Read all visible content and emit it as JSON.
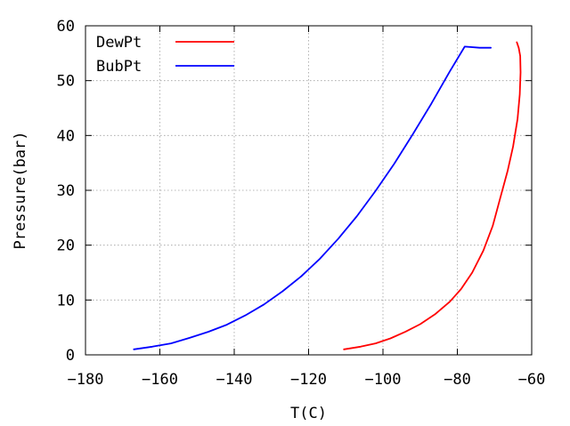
{
  "chart_data": {
    "type": "line",
    "xlabel": "T(C)",
    "ylabel": "Pressure(bar)",
    "xlim": [
      -180,
      -60
    ],
    "ylim": [
      0,
      60
    ],
    "xticks": [
      -180,
      -160,
      -140,
      -120,
      -100,
      -80,
      -60
    ],
    "yticks": [
      0,
      10,
      20,
      30,
      40,
      50,
      60
    ],
    "xtick_labels": [
      "−180",
      "−160",
      "−140",
      "−120",
      "−100",
      "−80",
      "−60"
    ],
    "ytick_labels": [
      "0",
      "10",
      "20",
      "30",
      "40",
      "50",
      "60"
    ],
    "grid": true,
    "legend_position": "top-left",
    "series": [
      {
        "name": "DewPt",
        "color": "#ff0000",
        "x": [
          -110.5,
          -106,
          -102,
          -98,
          -94,
          -90,
          -86,
          -82,
          -79,
          -76,
          -73,
          -70.5,
          -68.5,
          -66.5,
          -65,
          -63.8,
          -63.2,
          -63.0,
          -63.1,
          -63.5,
          -64.0
        ],
        "y": [
          1.0,
          1.5,
          2.1,
          3.0,
          4.2,
          5.6,
          7.4,
          9.7,
          12.0,
          15.0,
          19.0,
          23.5,
          28.5,
          33.5,
          38.0,
          43.0,
          47.5,
          51.5,
          54.5,
          56.0,
          57.0
        ]
      },
      {
        "name": "BubPt",
        "color": "#0000ff",
        "x": [
          -167,
          -162,
          -157,
          -152,
          -147,
          -142,
          -137,
          -132,
          -127,
          -122,
          -117,
          -112,
          -107,
          -102,
          -97,
          -92,
          -87,
          -82,
          -78,
          -74,
          -71
        ],
        "y": [
          1.0,
          1.5,
          2.1,
          3.1,
          4.2,
          5.5,
          7.2,
          9.2,
          11.6,
          14.3,
          17.5,
          21.2,
          25.3,
          29.9,
          34.8,
          40.2,
          45.8,
          51.7,
          56.2,
          56.0,
          56.0
        ]
      }
    ]
  }
}
